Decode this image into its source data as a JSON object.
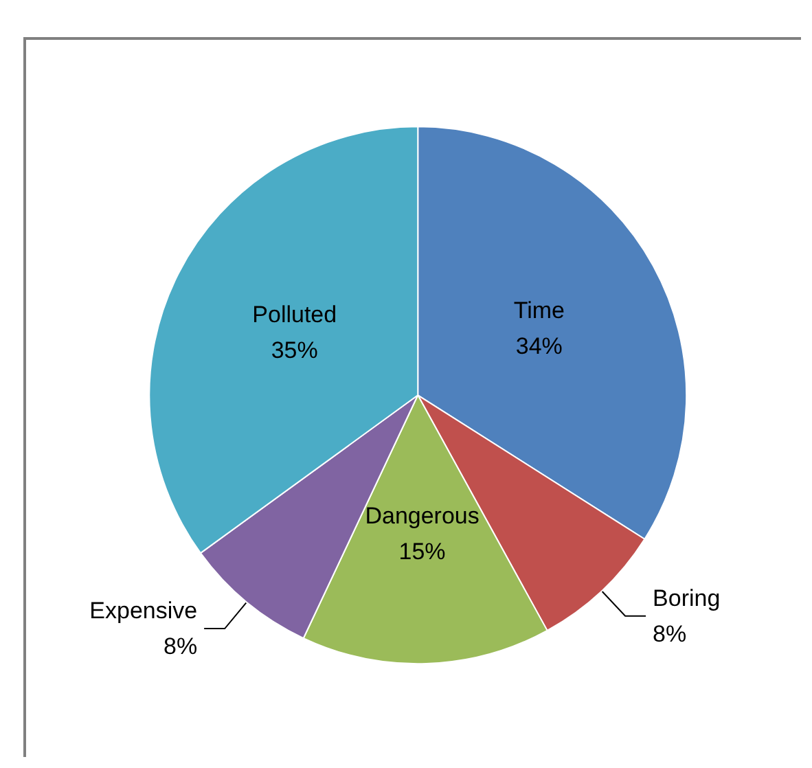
{
  "chart_data": {
    "type": "pie",
    "categories": [
      "Time",
      "Boring",
      "Dangerous",
      "Expensive",
      "Polluted"
    ],
    "values": [
      34,
      8,
      15,
      8,
      35
    ],
    "value_labels": [
      "34%",
      "8%",
      "15%",
      "8%",
      "35%"
    ],
    "colors": [
      "#4f81bd",
      "#c0504d",
      "#9bbb59",
      "#8064a2",
      "#4bacc6"
    ],
    "legend": false
  }
}
